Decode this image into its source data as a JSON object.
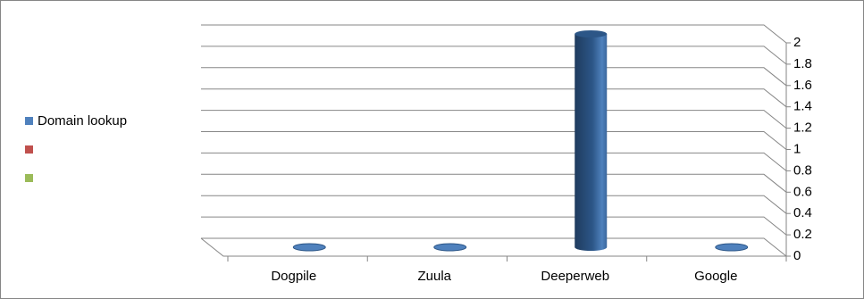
{
  "chart_data": {
    "type": "bar3d",
    "categories": [
      "Dogpile",
      "Zuula",
      "Deeperweb",
      "Google"
    ],
    "series": [
      {
        "name": "Domain lookup",
        "color": "#4f81bd",
        "values": [
          0,
          0,
          2,
          0
        ]
      },
      {
        "name": null,
        "color": "#c0504d",
        "values": [
          null,
          null,
          null,
          null
        ]
      },
      {
        "name": null,
        "color": "#9bbb59",
        "values": [
          null,
          null,
          null,
          null
        ]
      }
    ],
    "ylim": [
      0,
      2
    ],
    "yticks": [
      0,
      0.2,
      0.4,
      0.6,
      0.8,
      1,
      1.2,
      1.4,
      1.6,
      1.8,
      2
    ],
    "grid": true,
    "legend": "left"
  }
}
